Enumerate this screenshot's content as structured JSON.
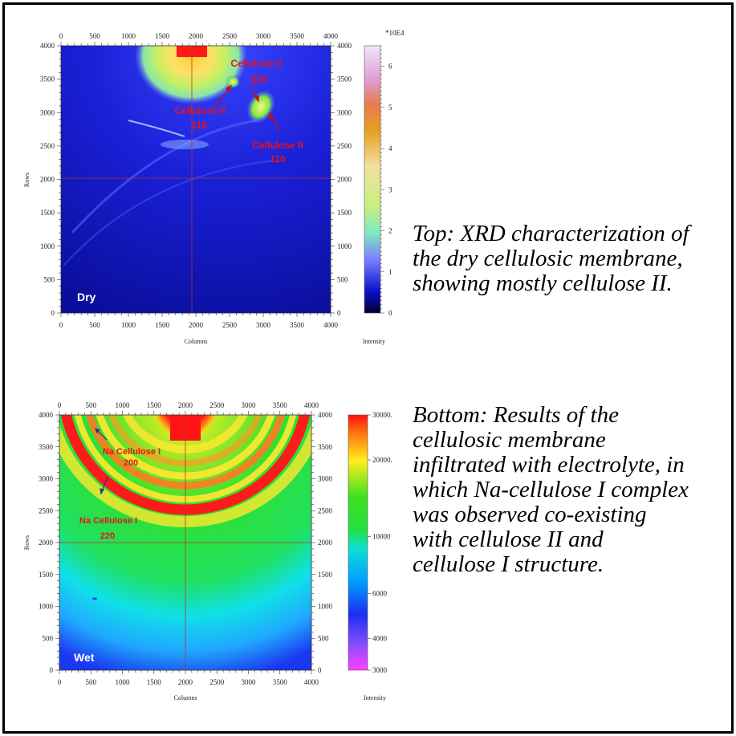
{
  "chart_data": [
    {
      "type": "heatmap",
      "id": "dry",
      "corner_label": "Dry",
      "xlabel": "Columns",
      "ylabel": "Rows",
      "colorbar_label": "Intensity",
      "colorbar_unit": "*10E4",
      "xlim": [
        0,
        4000
      ],
      "ylim": [
        0,
        4000
      ],
      "x_ticks": [
        "0",
        "500",
        "1000",
        "1500",
        "2000",
        "2500",
        "3000",
        "3500",
        "4000"
      ],
      "y_ticks": [
        "0",
        "500",
        "1000",
        "1500",
        "2000",
        "2500",
        "3000",
        "3500",
        "4000"
      ],
      "colorbar_ticks": [
        "0",
        "1",
        "2",
        "3",
        "4",
        "5",
        "6"
      ],
      "colorbar_range": [
        0,
        6.5
      ],
      "annotations": [
        {
          "lines": [
            "Cellulose II",
            "020"
          ]
        },
        {
          "lines": [
            "Cellulose II",
            "110"
          ]
        },
        {
          "lines": [
            "Cellulose II",
            "110"
          ]
        }
      ],
      "colors": {
        "background": "#0a10c8",
        "low": "#000033",
        "high": "#ffffff",
        "marker": "#ff0000"
      }
    },
    {
      "type": "heatmap",
      "id": "wet",
      "corner_label": "Wet",
      "xlabel": "Columns",
      "ylabel": "Rows",
      "colorbar_label": "Intensity",
      "xlim": [
        0,
        4000
      ],
      "ylim": [
        0,
        4000
      ],
      "x_ticks": [
        "0",
        "500",
        "1000",
        "1500",
        "2000",
        "2500",
        "3000",
        "3500",
        "4000"
      ],
      "y_ticks": [
        "0",
        "500",
        "1000",
        "1500",
        "2000",
        "2500",
        "3000",
        "3500",
        "4000"
      ],
      "colorbar_ticks": [
        "30000.",
        "20000.",
        "10000",
        "6000",
        "4000",
        "3000"
      ],
      "colorbar_range": [
        3000,
        30000
      ],
      "annotations": [
        {
          "lines": [
            "Na Cellulose I",
            "200"
          ]
        },
        {
          "lines": [
            "Na Cellulose I",
            "220"
          ]
        }
      ],
      "colors": {
        "background": "#22e022",
        "ring": "#ff1010",
        "low": "#1a38f0",
        "marker": "#cc2020"
      }
    }
  ],
  "captions": {
    "top": [
      "Top: XRD characterization of",
      "the dry cellulosic membrane,",
      "showing mostly cellulose II."
    ],
    "bottom": [
      "Bottom: Results of the",
      "cellulosic membrane",
      "infiltrated with electrolyte, in",
      "which Na-cellulose I complex",
      "was observed co-existing",
      "with cellulose II and",
      "cellulose I structure."
    ]
  }
}
